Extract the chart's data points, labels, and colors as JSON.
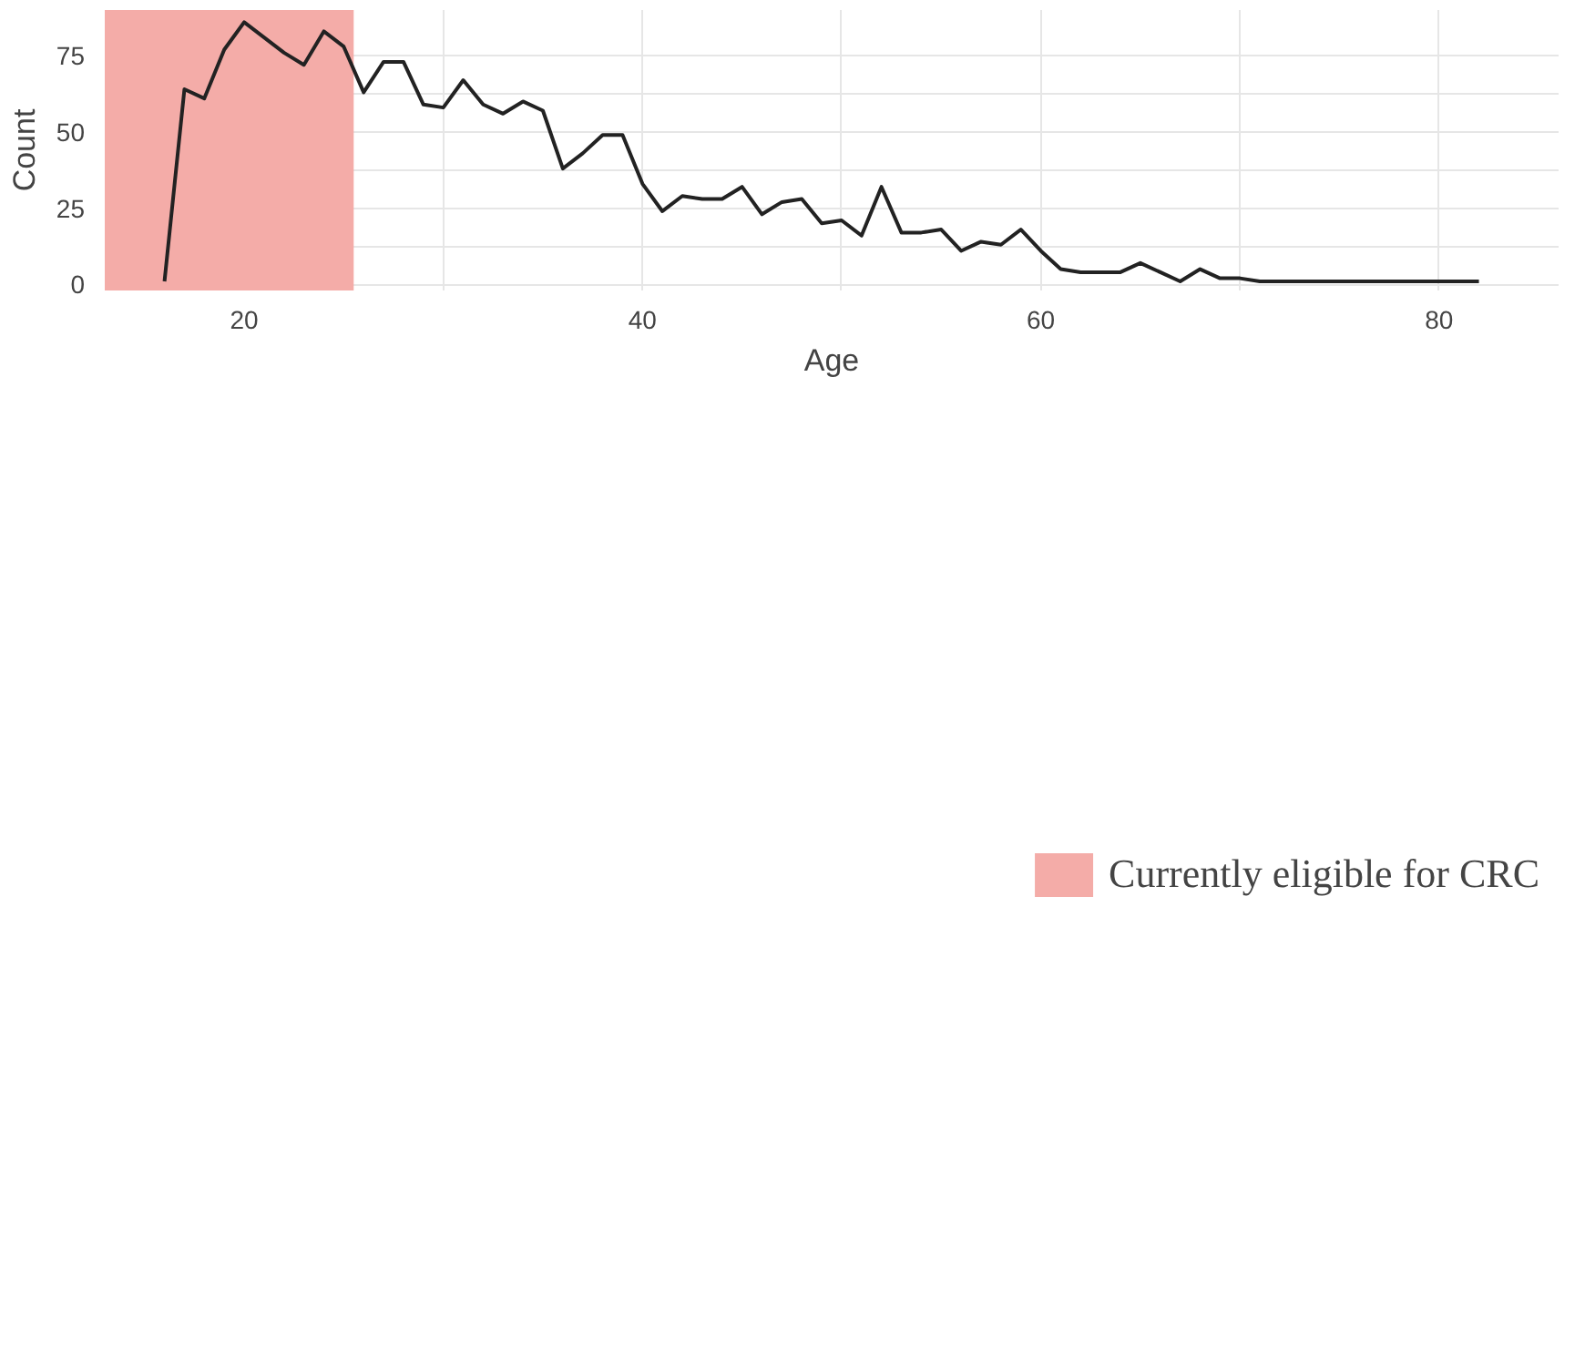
{
  "chart_data": {
    "type": "line",
    "xlabel": "Age",
    "ylabel": "Count",
    "x": [
      16,
      17,
      18,
      19,
      20,
      21,
      22,
      23,
      24,
      25,
      26,
      27,
      28,
      29,
      30,
      31,
      32,
      33,
      34,
      35,
      36,
      37,
      38,
      39,
      40,
      41,
      42,
      43,
      44,
      45,
      46,
      47,
      48,
      49,
      50,
      51,
      52,
      53,
      54,
      55,
      56,
      57,
      58,
      59,
      60,
      61,
      62,
      63,
      64,
      65,
      66,
      67,
      68,
      69,
      70,
      71,
      72,
      73,
      74,
      75,
      76,
      77,
      78,
      79,
      80,
      81,
      82
    ],
    "series": [
      {
        "color": "#222222",
        "values": [
          1,
          64,
          61,
          77,
          86,
          81,
          76,
          72,
          83,
          78,
          63,
          73,
          73,
          59,
          58,
          67,
          59,
          56,
          60,
          57,
          38,
          43,
          49,
          49,
          33,
          24,
          29,
          28,
          28,
          32,
          23,
          27,
          28,
          20,
          21,
          16,
          32,
          17,
          17,
          18,
          11,
          14,
          13,
          18,
          11,
          5,
          4,
          4,
          4,
          7,
          4,
          1,
          5,
          2,
          2,
          1,
          1,
          1,
          1,
          1,
          1,
          1,
          1,
          1,
          1,
          1,
          1
        ]
      }
    ],
    "xlim": [
      13,
      86
    ],
    "ylim": [
      -2,
      90
    ],
    "xticks": [
      20,
      {
        "value": 30,
        "label": null
      },
      40,
      {
        "value": 50,
        "label": null
      },
      60,
      {
        "value": 70,
        "label": null
      },
      80
    ],
    "yticks": [
      0,
      {
        "value": 12.5,
        "label": null
      },
      25,
      {
        "value": 37.5,
        "label": null
      },
      50,
      {
        "value": 62.5,
        "label": null
      },
      75
    ],
    "bands": [
      {
        "axis": "x",
        "from": 13,
        "to": 25.5,
        "label": "Currently eligible for CRC",
        "color": "#f4aca8"
      }
    ],
    "grid": true,
    "legend": "bottom",
    "marker": "none",
    "line_style": "solid"
  }
}
